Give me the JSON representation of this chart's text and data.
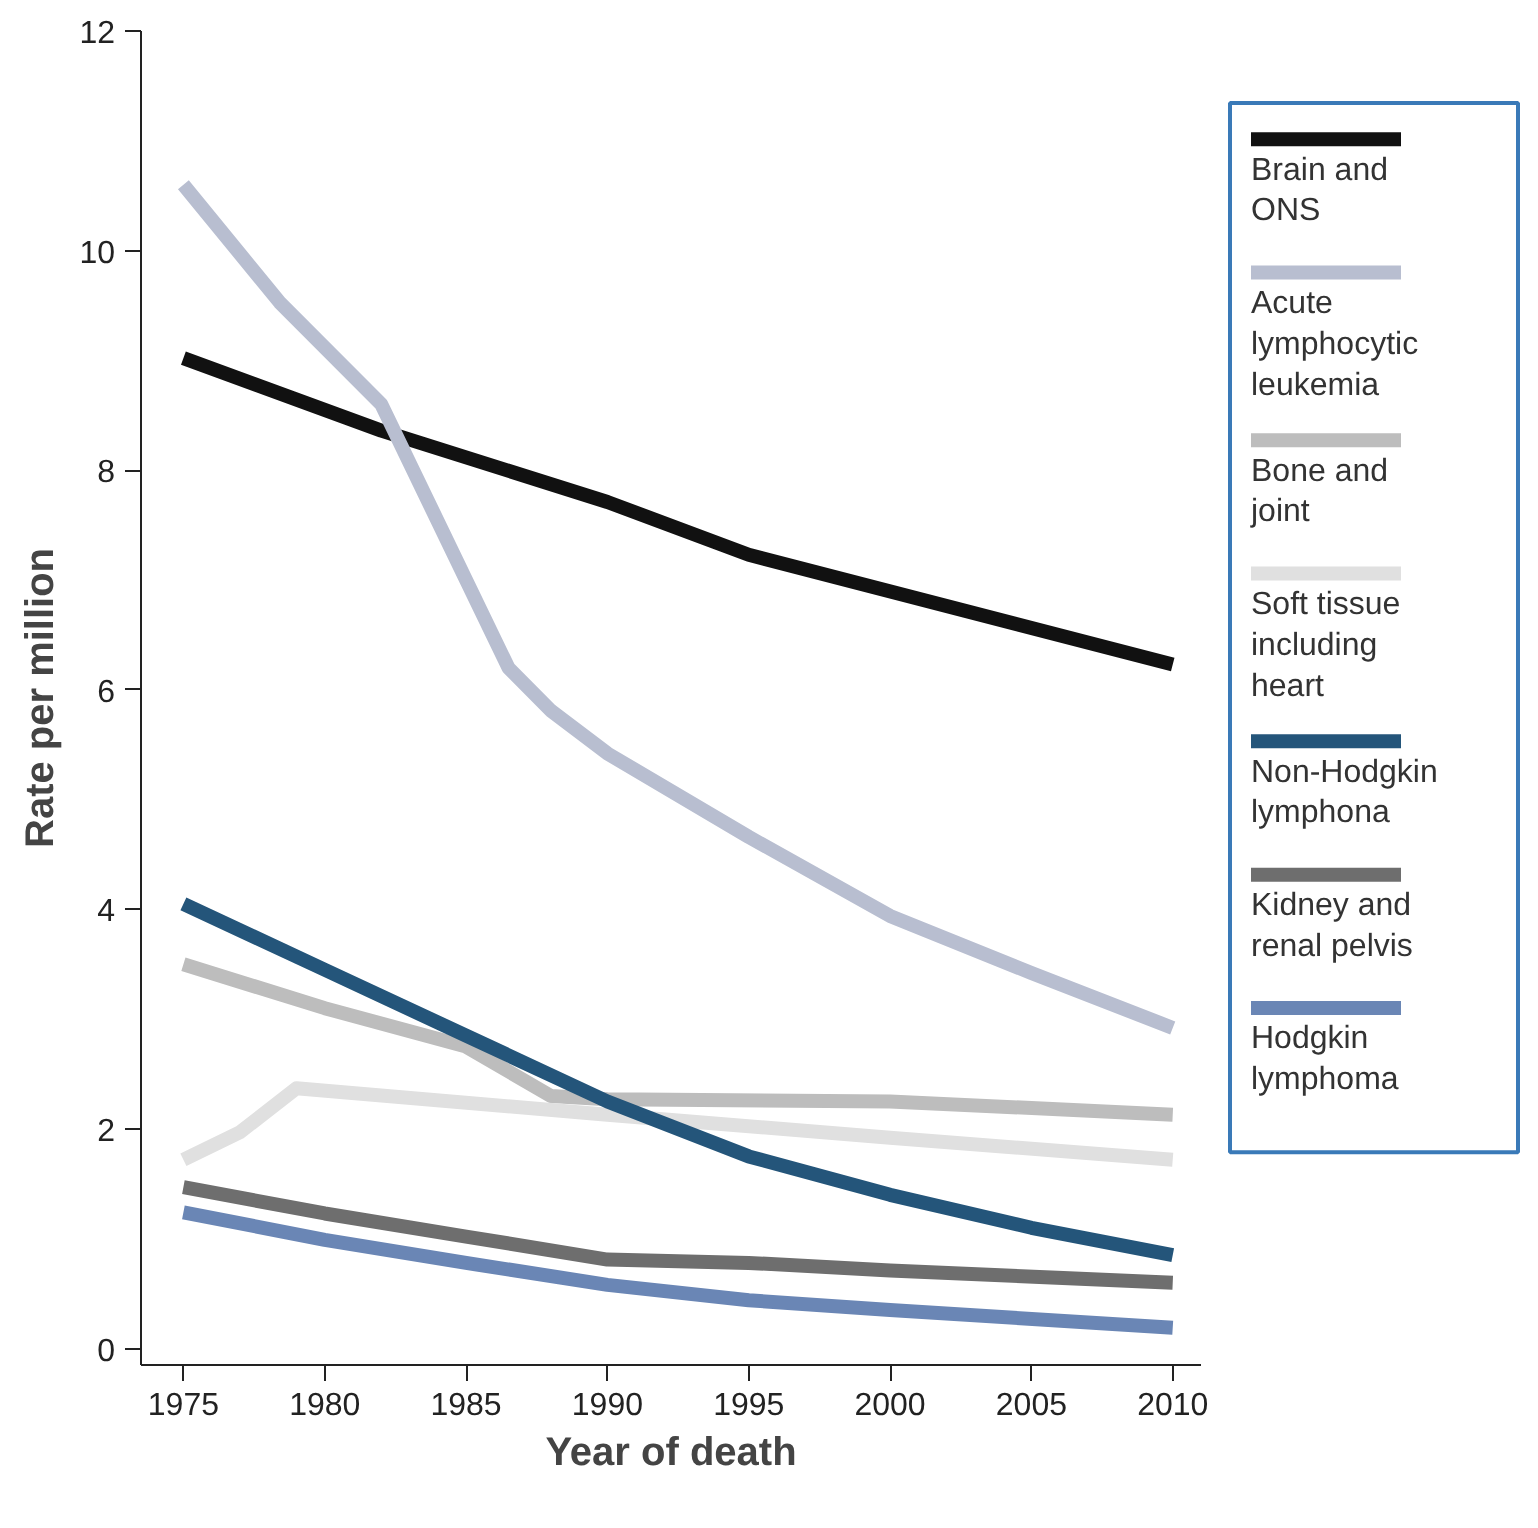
{
  "chart_data": {
    "type": "line",
    "xlabel": "Year of death",
    "ylabel": "Rate per million",
    "xlim": [
      1973.5,
      2011
    ],
    "ylim": [
      -0.15,
      12
    ],
    "xticks": [
      1975,
      1980,
      1985,
      1990,
      1995,
      2000,
      2005,
      2010
    ],
    "yticks": [
      0,
      2,
      4,
      6,
      8,
      10,
      12
    ],
    "grid": false,
    "legend": "right",
    "marker": "none",
    "line_style": "solid",
    "series": [
      {
        "name": "Brain and ONS",
        "color": "#111111",
        "x": [
          1975,
          1982,
          1990,
          1995,
          2010
        ],
        "values": [
          9.02,
          8.36,
          7.71,
          7.23,
          6.23
        ]
      },
      {
        "name": "Acute lymphocytic leukemia",
        "color": "#b8bed0",
        "x": [
          1975,
          1978.4,
          1982,
          1985,
          1986.5,
          1988,
          1990,
          1995,
          2000,
          2005,
          2010
        ],
        "values": [
          10.6,
          9.53,
          8.6,
          7.0,
          6.2,
          5.81,
          5.42,
          4.66,
          3.94,
          3.42,
          2.92
        ]
      },
      {
        "name": "Bone and joint",
        "color": "#bdbdbd",
        "x": [
          1975,
          1980,
          1985,
          1988,
          1990,
          2000,
          2010
        ],
        "values": [
          3.5,
          3.1,
          2.75,
          2.3,
          2.27,
          2.25,
          2.13
        ]
      },
      {
        "name": "Soft tissue including heart",
        "color": "#e0e0e0",
        "x": [
          1975,
          1977,
          1979,
          1990,
          2000,
          2010
        ],
        "values": [
          1.72,
          1.97,
          2.37,
          2.13,
          1.92,
          1.72
        ]
      },
      {
        "name": "Non-Hodgkin lymphona",
        "color": "#24557a",
        "x": [
          1975,
          1980,
          1985,
          1990,
          1995,
          2000,
          2005,
          2010
        ],
        "values": [
          4.05,
          3.45,
          2.85,
          2.25,
          1.75,
          1.4,
          1.1,
          0.85
        ]
      },
      {
        "name": "Kidney and renal pelvis",
        "color": "#6e6e6e",
        "x": [
          1975,
          1980,
          1985,
          1990,
          1995,
          2000,
          2010
        ],
        "values": [
          1.47,
          1.23,
          1.02,
          0.81,
          0.78,
          0.71,
          0.6
        ]
      },
      {
        "name": "Hodgkin lymphoma",
        "color": "#6a86b5",
        "x": [
          1975,
          1980,
          1985,
          1990,
          1995,
          2000,
          2010
        ],
        "values": [
          1.24,
          0.99,
          0.78,
          0.58,
          0.44,
          0.35,
          0.19
        ]
      }
    ]
  }
}
